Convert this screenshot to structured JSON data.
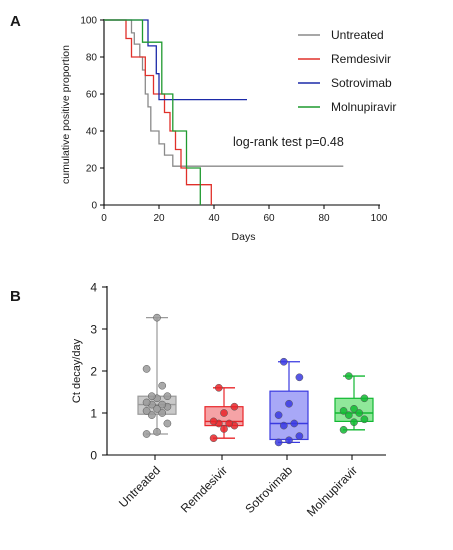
{
  "chart_data": [
    {
      "panel": "A",
      "type": "line",
      "xlabel": "Days",
      "ylabel": "cumulative positive proportion",
      "xlim": [
        0,
        100
      ],
      "ylim": [
        0,
        100
      ],
      "xticks": [
        0,
        20,
        40,
        60,
        80,
        100
      ],
      "yticks": [
        0,
        20,
        40,
        60,
        80,
        100
      ],
      "annotation": "log-rank test p=0.48",
      "legend_position": "top-right",
      "series": [
        {
          "name": "Untreated",
          "color": "#8a8a8a",
          "steps": [
            [
              0,
              100
            ],
            [
              10,
              100
            ],
            [
              10,
              93
            ],
            [
              11,
              93
            ],
            [
              11,
              87
            ],
            [
              13,
              87
            ],
            [
              13,
              80
            ],
            [
              14,
              80
            ],
            [
              14,
              73
            ],
            [
              15,
              73
            ],
            [
              15,
              60
            ],
            [
              16,
              60
            ],
            [
              16,
              53
            ],
            [
              17,
              53
            ],
            [
              17,
              40
            ],
            [
              20,
              40
            ],
            [
              20,
              33
            ],
            [
              22,
              33
            ],
            [
              22,
              27
            ],
            [
              25,
              27
            ],
            [
              25,
              21
            ],
            [
              87,
              21
            ]
          ]
        },
        {
          "name": "Remdesivir",
          "color": "#e0302a",
          "steps": [
            [
              0,
              100
            ],
            [
              8,
              100
            ],
            [
              8,
              90
            ],
            [
              10,
              90
            ],
            [
              10,
              80
            ],
            [
              15,
              80
            ],
            [
              15,
              70
            ],
            [
              18,
              70
            ],
            [
              18,
              60
            ],
            [
              22,
              60
            ],
            [
              22,
              50
            ],
            [
              24,
              50
            ],
            [
              24,
              40
            ],
            [
              26,
              40
            ],
            [
              26,
              30
            ],
            [
              28,
              30
            ],
            [
              28,
              20
            ],
            [
              30,
              20
            ],
            [
              30,
              11
            ],
            [
              39,
              11
            ],
            [
              39,
              0
            ]
          ]
        },
        {
          "name": "Sotrovimab",
          "color": "#1c2aa8",
          "steps": [
            [
              0,
              100
            ],
            [
              16,
              100
            ],
            [
              16,
              86
            ],
            [
              19,
              86
            ],
            [
              19,
              71
            ],
            [
              20,
              71
            ],
            [
              20,
              57
            ],
            [
              52,
              57
            ]
          ]
        },
        {
          "name": "Molnupiravir",
          "color": "#1f9a2f",
          "steps": [
            [
              0,
              100
            ],
            [
              14,
              100
            ],
            [
              14,
              88
            ],
            [
              21,
              88
            ],
            [
              21,
              60
            ],
            [
              25,
              60
            ],
            [
              25,
              40
            ],
            [
              30,
              40
            ],
            [
              30,
              20
            ],
            [
              35,
              20
            ],
            [
              35,
              0
            ]
          ]
        }
      ]
    },
    {
      "panel": "B",
      "type": "box",
      "ylabel": "Ct decay/day",
      "ylim": [
        0,
        4
      ],
      "yticks": [
        0,
        1,
        2,
        3,
        4
      ],
      "categories": [
        "Untreated",
        "Remdesivir",
        "Sotrovimab",
        "Molnupiravir"
      ],
      "groups": [
        {
          "name": "Untreated",
          "color": "#9a9a9a",
          "box_fill": "#c9c9c9",
          "min": 0.5,
          "q1": 0.97,
          "median": 1.2,
          "q3": 1.4,
          "max": 3.27,
          "points": [
            0.5,
            0.55,
            0.75,
            0.95,
            1.0,
            1.05,
            1.1,
            1.15,
            1.2,
            1.2,
            1.25,
            1.35,
            1.4,
            1.4,
            1.65,
            2.05,
            3.27
          ]
        },
        {
          "name": "Remdesivir",
          "color": "#e8262a",
          "box_fill": "#f5a3a6",
          "min": 0.4,
          "q1": 0.7,
          "median": 0.8,
          "q3": 1.15,
          "max": 1.6,
          "points": [
            0.4,
            0.62,
            0.7,
            0.75,
            0.75,
            0.8,
            1.0,
            1.15,
            1.6
          ]
        },
        {
          "name": "Sotrovimab",
          "color": "#3a3ae0",
          "box_fill": "#a8a8f7",
          "min": 0.3,
          "q1": 0.37,
          "median": 0.75,
          "q3": 1.52,
          "max": 2.22,
          "points": [
            0.3,
            0.35,
            0.45,
            0.7,
            0.75,
            0.95,
            1.22,
            1.85,
            2.22
          ]
        },
        {
          "name": "Molnupiravir",
          "color": "#12b832",
          "box_fill": "#90e89a",
          "min": 0.6,
          "q1": 0.8,
          "median": 1.0,
          "q3": 1.35,
          "max": 1.88,
          "points": [
            0.6,
            0.78,
            0.85,
            0.95,
            1.0,
            1.05,
            1.1,
            1.35,
            1.88
          ]
        }
      ]
    }
  ]
}
